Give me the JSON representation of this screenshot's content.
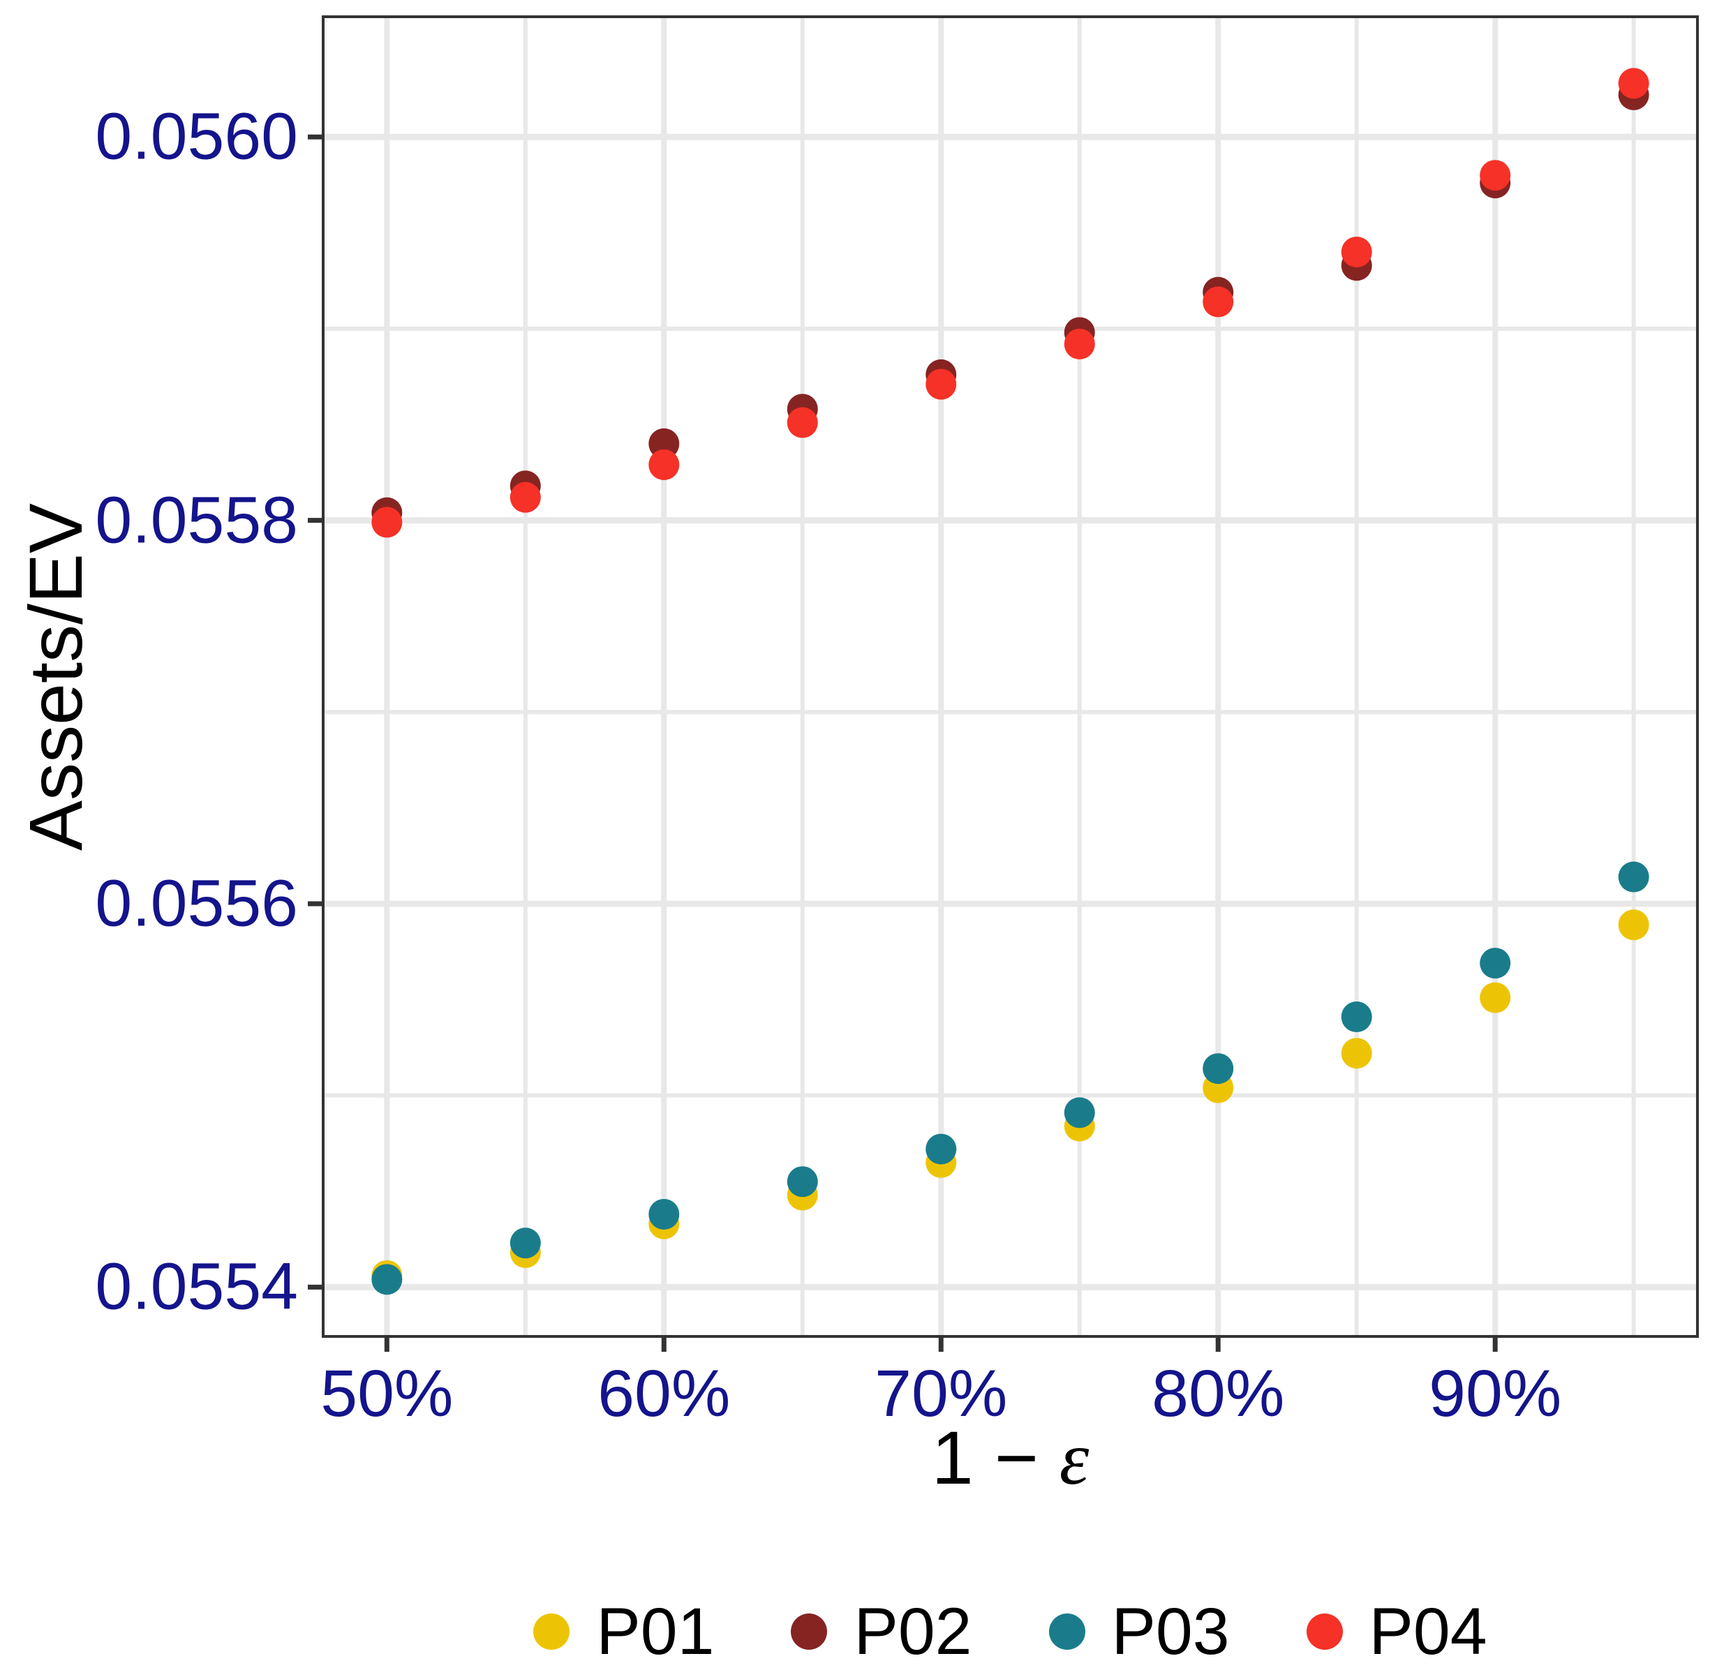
{
  "y_axis": {
    "title": "Assets/EV",
    "ticks": [
      {
        "label": "0.0560",
        "value": 0.056
      },
      {
        "label": "0.0558",
        "value": 0.0558
      },
      {
        "label": "0.0556",
        "value": 0.0556
      },
      {
        "label": "0.0554",
        "value": 0.0554
      }
    ]
  },
  "x_axis": {
    "title_prefix": "1 − ",
    "title_epsilon": "ε",
    "ticks": [
      {
        "label": "50%",
        "value": 50
      },
      {
        "label": "60%",
        "value": 60
      },
      {
        "label": "70%",
        "value": 70
      },
      {
        "label": "80%",
        "value": 80
      },
      {
        "label": "90%",
        "value": 90
      }
    ]
  },
  "legend": {
    "position": "bottom-center",
    "items": [
      {
        "label": "P01",
        "color": "#EDC405"
      },
      {
        "label": "P02",
        "color": "#862422"
      },
      {
        "label": "P03",
        "color": "#1A7C8B"
      },
      {
        "label": "P04",
        "color": "#F63127"
      }
    ]
  },
  "colors": {
    "tick_label": "#14148C",
    "axis_title": "#000000",
    "panel_border": "#333333",
    "tick_mark": "#333333",
    "gridline": "#E8E8E8",
    "background": "#FFFFFF"
  },
  "chart_data": {
    "type": "scatter",
    "title": "",
    "xlabel": "1 − ε",
    "ylabel": "Assets/EV",
    "x_unit": "percent",
    "x": [
      50,
      55,
      60,
      65,
      70,
      75,
      80,
      85,
      90,
      95
    ],
    "series": [
      {
        "name": "P01",
        "color": "#EDC405",
        "values": [
          0.055406,
          0.055418,
          0.055433,
          0.055448,
          0.055465,
          0.055484,
          0.055504,
          0.055522,
          0.055551,
          0.055589
        ]
      },
      {
        "name": "P02",
        "color": "#862422",
        "values": [
          0.055804,
          0.055818,
          0.05584,
          0.055858,
          0.055876,
          0.055898,
          0.055919,
          0.055933,
          0.055976,
          0.056022
        ]
      },
      {
        "name": "P03",
        "color": "#1A7C8B",
        "values": [
          0.055404,
          0.055423,
          0.055438,
          0.055455,
          0.055472,
          0.055491,
          0.055514,
          0.055541,
          0.055569,
          0.055614
        ]
      },
      {
        "name": "P04",
        "color": "#F63127",
        "values": [
          0.055799,
          0.055812,
          0.055829,
          0.055851,
          0.055871,
          0.055892,
          0.055914,
          0.05594,
          0.05598,
          0.056028
        ]
      }
    ],
    "xlim": [
      47.75,
      97.25
    ],
    "ylim": [
      0.055375,
      0.056062
    ],
    "x_ticks": [
      50,
      60,
      70,
      80,
      90
    ],
    "x_minor_ticks": [
      55,
      65,
      75,
      85,
      95
    ],
    "y_ticks": [
      0.0554,
      0.0556,
      0.0558,
      0.056
    ],
    "y_minor_ticks": [
      0.0555,
      0.0557,
      0.0559
    ],
    "grid": "major+minor",
    "legend_position": "bottom",
    "point_radius_px": 22
  }
}
